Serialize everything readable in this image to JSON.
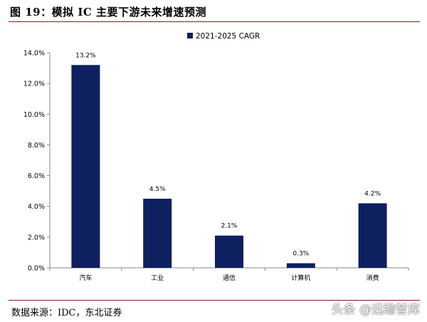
{
  "figure": {
    "title": "图 19：模拟 IC 主要下游未来增速预测",
    "source": "数据来源：IDC，东北证券",
    "watermark": "头条 @远瞻智库"
  },
  "chart_data": {
    "type": "bar",
    "categories": [
      "汽车",
      "工业",
      "通信",
      "计算机",
      "消费"
    ],
    "series": [
      {
        "name": "2021-2025 CAGR",
        "values": [
          13.2,
          4.5,
          2.1,
          0.3,
          4.2
        ],
        "color": "#0e2060"
      }
    ],
    "data_labels": [
      "13.2%",
      "4.5%",
      "2.1%",
      "0.3%",
      "4.2%"
    ],
    "y_ticks": [
      "0.0%",
      "2.0%",
      "4.0%",
      "6.0%",
      "8.0%",
      "10.0%",
      "12.0%",
      "14.0%"
    ],
    "ylim": [
      0,
      14
    ],
    "grid": false,
    "legend_position": "top-center"
  }
}
